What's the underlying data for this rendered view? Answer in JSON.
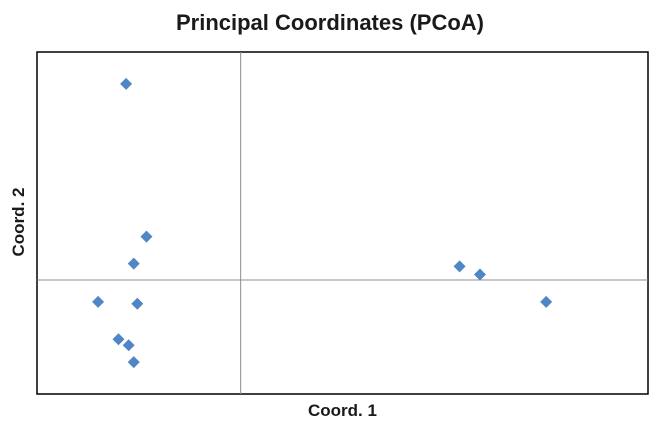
{
  "chart_data": {
    "type": "scatter",
    "title": "Principal Coordinates (PCoA)",
    "xlabel": "Coord. 1",
    "ylabel": "Coord. 2",
    "xlim": [
      -0.4,
      0.8
    ],
    "ylim": [
      -0.25,
      0.5
    ],
    "grid": false,
    "legend": "none",
    "marker_color": "#4f86c6",
    "axis_line_color": "#8c8c8c",
    "series": [
      {
        "x": [
          -0.225,
          -0.185,
          -0.21,
          -0.28,
          -0.203,
          -0.22,
          -0.24,
          -0.21,
          0.43,
          0.47,
          0.6
        ],
        "y": [
          0.43,
          0.095,
          0.036,
          -0.048,
          -0.052,
          -0.143,
          -0.13,
          -0.18,
          0.03,
          0.012,
          -0.048
        ]
      }
    ]
  }
}
